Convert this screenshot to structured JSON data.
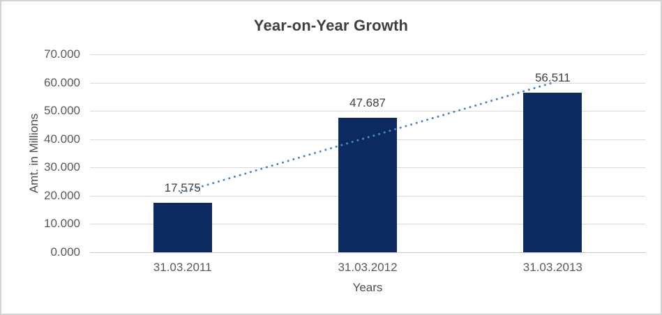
{
  "chart_data": {
    "type": "bar",
    "title": "Year-on-Year Growth",
    "categories": [
      "31.03.2011",
      "31.03.2012",
      "31.03.2013"
    ],
    "values": [
      17.575,
      47.687,
      56.511
    ],
    "data_labels": [
      "17.575",
      "47.687",
      "56.511"
    ],
    "xlabel": "Years",
    "ylabel": "Amt. in Millions",
    "ylim": [
      0,
      70
    ],
    "ytick_labels": [
      "0.000",
      "10.000",
      "20.000",
      "30.000",
      "40.000",
      "50.000",
      "60.000",
      "70.000"
    ],
    "grid": true,
    "legend": "none",
    "trendline": {
      "type": "linear",
      "style": "dotted"
    },
    "colors": {
      "bar": "#0c2a60",
      "trendline": "#4a86c8",
      "gridline": "#d9d9d9",
      "axis_line": "#c9c9c9",
      "title_text": "#3f3f3f",
      "tick_text": "#595959",
      "data_label_text": "#404040",
      "axis_title_text": "#4d4d4d",
      "border": "#d3d3d3",
      "background": "#ffffff"
    }
  }
}
